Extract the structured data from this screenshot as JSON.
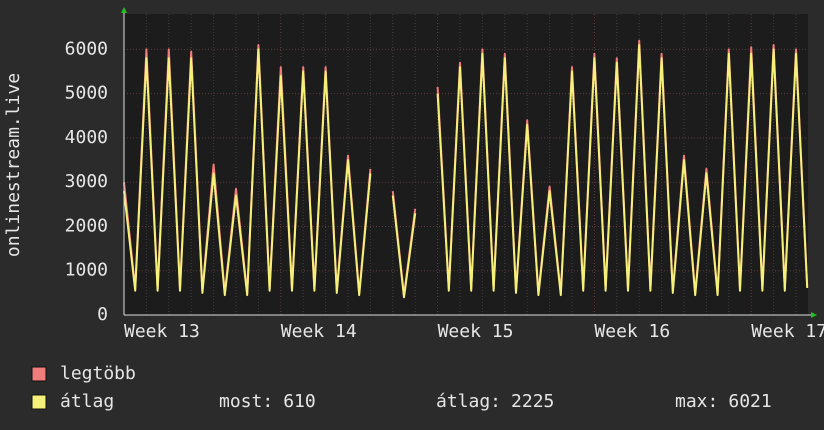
{
  "chart_data": {
    "type": "line",
    "y_label": "onlinestream.live",
    "categories": [
      "Week 13",
      null,
      null,
      null,
      null,
      null,
      null,
      null,
      null,
      null,
      null,
      null,
      null,
      null,
      "Week 14",
      null,
      null,
      null,
      null,
      null,
      null,
      null,
      null,
      null,
      null,
      null,
      null,
      null,
      "Week 15",
      null,
      null,
      null,
      null,
      null,
      null,
      null,
      null,
      null,
      null,
      null,
      null,
      null,
      "Week 16",
      null,
      null,
      null,
      null,
      null,
      null,
      null,
      null,
      null,
      null,
      null,
      null,
      null,
      "Week 17",
      null,
      null,
      null,
      null,
      null
    ],
    "series": [
      {
        "name": "legtöbb",
        "color": "#f07c7c",
        "values": [
          3000,
          600,
          6000,
          600,
          6000,
          600,
          5950,
          550,
          3400,
          500,
          2850,
          500,
          6100,
          600,
          5600,
          600,
          5600,
          600,
          5600,
          550,
          3600,
          500,
          3300,
          null,
          2800,
          450,
          2400,
          null,
          5150,
          600,
          5700,
          600,
          6000,
          600,
          5900,
          550,
          4400,
          500,
          2900,
          500,
          5600,
          600,
          5900,
          600,
          5800,
          600,
          6200,
          600,
          5900,
          550,
          3600,
          500,
          3300,
          500,
          6000,
          600,
          6050,
          600,
          6100,
          600,
          6000,
          650
        ]
      },
      {
        "name": "átlag",
        "color": "#f5f07a",
        "values": [
          2800,
          550,
          5800,
          550,
          5800,
          550,
          5800,
          500,
          3200,
          450,
          2700,
          450,
          6000,
          550,
          5400,
          550,
          5500,
          550,
          5500,
          500,
          3500,
          450,
          3200,
          null,
          2700,
          400,
          2300,
          null,
          5000,
          550,
          5600,
          550,
          5900,
          550,
          5800,
          500,
          4300,
          450,
          2800,
          450,
          5500,
          550,
          5800,
          550,
          5700,
          550,
          6100,
          550,
          5800,
          500,
          3500,
          450,
          3200,
          450,
          5900,
          550,
          5900,
          550,
          6000,
          550,
          5900,
          610
        ]
      }
    ],
    "stats": [
      {
        "label": "most:",
        "value": 610
      },
      {
        "label": "átlag:",
        "value": 2225
      },
      {
        "label": "max:",
        "value": 6021
      }
    ],
    "ylim": [
      0,
      6800
    ],
    "yticks": [
      0,
      1000,
      2000,
      3000,
      4000,
      5000,
      6000
    ],
    "grid": true
  }
}
